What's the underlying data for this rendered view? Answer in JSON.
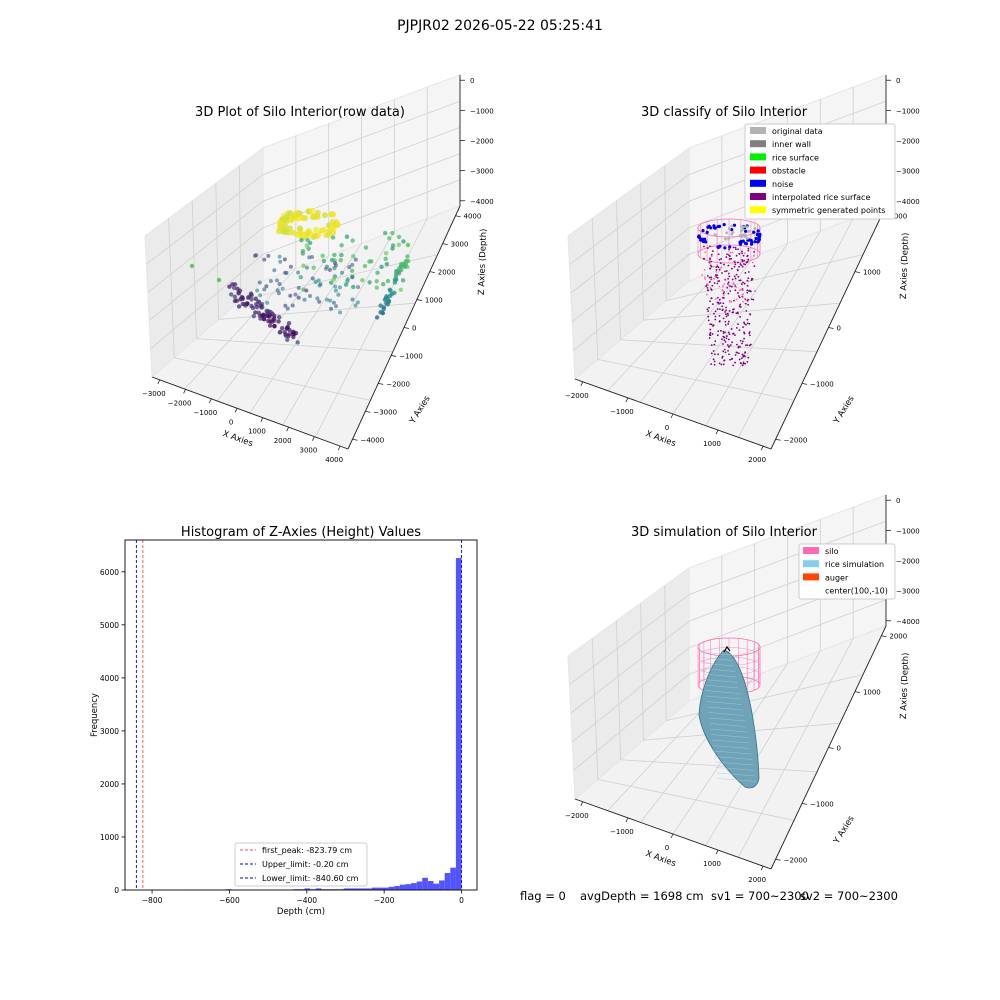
{
  "suptitle": "PJPJR02 2026-05-22 05:25:41",
  "status": {
    "flag": "flag = 0",
    "avg": "avgDepth = 1698 cm",
    "sv1": "sv1 = 700~2300",
    "sv2": "sv2 = 700~2300"
  },
  "colors": {
    "original data": "#b3b3b3",
    "inner wall": "#808080",
    "rice surface": "#00ee00",
    "obstacle": "#ff0000",
    "noise": "#0000ee",
    "interpolated rice surface": "#800080",
    "symmetric generated points": "#ffff00",
    "silo": "#ff69b4",
    "rice simulation": "#87ceeb",
    "auger": "#ff4500",
    "hist_bar": "#4a4aff"
  },
  "chart_data": [
    {
      "type": "scatter",
      "title": "3D Plot of Silo Interior(row data)",
      "xlabel": "X Axies",
      "ylabel": "Y Axies",
      "zlabel": "Z Axies (Depth)",
      "x_ticks": [
        "−3000",
        "−2000",
        "−1000",
        "0",
        "1000",
        "2000",
        "3000",
        "4000"
      ],
      "y_ticks": [
        "4000",
        "3000",
        "2000",
        "1000",
        "0",
        "−1000",
        "−2000",
        "−3000",
        "−4000"
      ],
      "z_ticks": [
        "0",
        "−1000",
        "−2000",
        "−3000",
        "−4000"
      ],
      "colormap": "viridis (colored by depth)"
    },
    {
      "type": "scatter",
      "title": "3D classify of Silo Interior",
      "xlabel": "X Axies",
      "ylabel": "Y Axies",
      "zlabel": "Z Axies (Depth)",
      "x_ticks": [
        "−2000",
        "−1000",
        "0",
        "1000",
        "2000"
      ],
      "y_ticks": [
        "2000",
        "1000",
        "0",
        "−1000",
        "−2000"
      ],
      "z_ticks": [
        "0",
        "−1000",
        "−2000",
        "−3000",
        "−4000"
      ],
      "legend": [
        "original data",
        "inner wall",
        "rice surface",
        "obstacle",
        "noise",
        "interpolated rice surface",
        "symmetric generated points"
      ],
      "legend_position": "upper right"
    },
    {
      "type": "bar",
      "title": "Histogram of Z-Axies (Height) Values",
      "xlabel": "Depth (cm)",
      "ylabel": "Frequency",
      "xlim": [
        -870,
        40
      ],
      "ylim": [
        0,
        6600
      ],
      "x_ticks": [
        -800,
        -600,
        -400,
        -200,
        0
      ],
      "x_tick_labels": [
        "−800",
        "−600",
        "−400",
        "−200",
        "0"
      ],
      "y_ticks": [
        0,
        1000,
        2000,
        3000,
        4000,
        5000,
        6000
      ],
      "y_tick_labels": [
        "0",
        "1000",
        "2000",
        "3000",
        "4000",
        "5000",
        "6000"
      ],
      "bin_width": 14.5,
      "bins": [
        {
          "x0": -725,
          "v": 3
        },
        {
          "x0": -710.5,
          "v": 3
        },
        {
          "x0": -696,
          "v": 3
        },
        {
          "x0": -681.5,
          "v": 3
        },
        {
          "x0": -667,
          "v": 3
        },
        {
          "x0": -652.5,
          "v": 3
        },
        {
          "x0": -638,
          "v": 3
        },
        {
          "x0": -623.5,
          "v": 3
        },
        {
          "x0": -609,
          "v": 15
        },
        {
          "x0": -594.5,
          "v": 3
        },
        {
          "x0": -580,
          "v": 3
        },
        {
          "x0": -565.5,
          "v": 3
        },
        {
          "x0": -551,
          "v": 3
        },
        {
          "x0": -536.5,
          "v": 3
        },
        {
          "x0": -522,
          "v": 3
        },
        {
          "x0": -507.5,
          "v": 3
        },
        {
          "x0": -493,
          "v": 3
        },
        {
          "x0": -478.5,
          "v": 3
        },
        {
          "x0": -464,
          "v": 3
        },
        {
          "x0": -449.5,
          "v": 3
        },
        {
          "x0": -435,
          "v": 15
        },
        {
          "x0": -420.5,
          "v": 15
        },
        {
          "x0": -406,
          "v": 30
        },
        {
          "x0": -391.5,
          "v": 15
        },
        {
          "x0": -377,
          "v": 30
        },
        {
          "x0": -362.5,
          "v": 15
        },
        {
          "x0": -348,
          "v": 15
        },
        {
          "x0": -333.5,
          "v": 15
        },
        {
          "x0": -319,
          "v": 15
        },
        {
          "x0": -304.5,
          "v": 30
        },
        {
          "x0": -290,
          "v": 30
        },
        {
          "x0": -275.5,
          "v": 30
        },
        {
          "x0": -261,
          "v": 30
        },
        {
          "x0": -246.5,
          "v": 30
        },
        {
          "x0": -232,
          "v": 45
        },
        {
          "x0": -217.5,
          "v": 45
        },
        {
          "x0": -203,
          "v": 45
        },
        {
          "x0": -188.5,
          "v": 60
        },
        {
          "x0": -174,
          "v": 75
        },
        {
          "x0": -159.5,
          "v": 100
        },
        {
          "x0": -145,
          "v": 110
        },
        {
          "x0": -130.5,
          "v": 130
        },
        {
          "x0": -116,
          "v": 160
        },
        {
          "x0": -101.5,
          "v": 230
        },
        {
          "x0": -87,
          "v": 170
        },
        {
          "x0": -72.5,
          "v": 120
        },
        {
          "x0": -58,
          "v": 180
        },
        {
          "x0": -43.5,
          "v": 320
        },
        {
          "x0": -29,
          "v": 420
        },
        {
          "x0": -14.5,
          "v": 6260
        }
      ],
      "vlines": [
        {
          "x": -823.79,
          "color": "#ff4b4b",
          "label": "first_peak: -823.79 cm"
        },
        {
          "x": -0.2,
          "color": "#0000cc",
          "label": "Upper_limit: -0.20 cm"
        },
        {
          "x": -840.6,
          "color": "#0000cc",
          "label": "Lower_limit: -840.60 cm"
        }
      ],
      "legend_position": "lower center"
    },
    {
      "type": "surface",
      "title": "3D simulation of Silo Interior",
      "xlabel": "X Axies",
      "ylabel": "Y Axies",
      "zlabel": "Z Axies (Depth)",
      "x_ticks": [
        "−2000",
        "−1000",
        "0",
        "1000",
        "2000"
      ],
      "y_ticks": [
        "2000",
        "1000",
        "0",
        "−1000",
        "−2000"
      ],
      "z_ticks": [
        "0",
        "−1000",
        "−2000",
        "−3000",
        "−4000"
      ],
      "legend": [
        "silo",
        "rice simulation",
        "auger",
        "center(100,-10)"
      ],
      "legend_position": "upper right"
    }
  ]
}
